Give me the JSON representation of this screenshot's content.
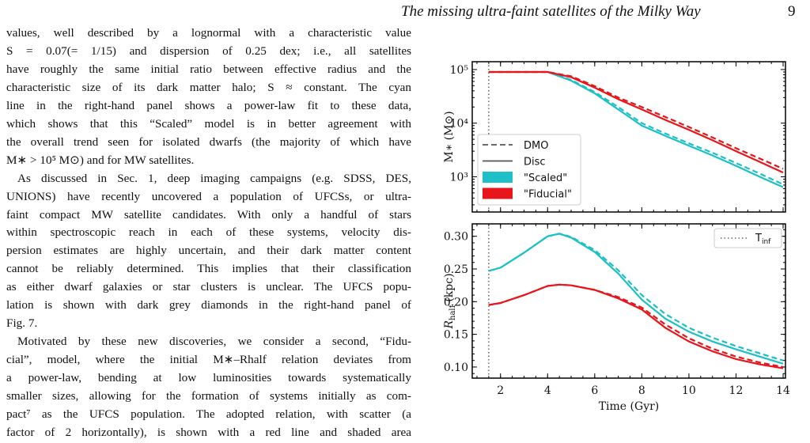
{
  "header": {
    "title": "The missing ultra-faint satellites of the Milky Way",
    "page": "9"
  },
  "text": {
    "lines": [
      "values, well described by a lognormal with a characteristic value",
      "S = 0.07(= 1/15) and dispersion of 0.25 dex; i.e., all satellites",
      "have roughly the same initial ratio between effective radius and the",
      "characteristic size of its dark matter halo; S ≈ constant. The cyan",
      "line in the right-hand panel shows a power-law fit to these data,",
      "which shows that this “Scaled” model is in better agreement with",
      "the overall trend seen for isolated dwarfs (the majority of which have",
      "M∗ > 10⁵ M⊙) and for MW satellites.",
      "As discussed in Sec. 1, deep imaging campaigns (e.g. SDSS, DES,",
      "UNIONS) have recently uncovered a population of UFCSs, or ultra-",
      "faint compact MW satellite candidates. With only a handful of stars",
      "within spectroscopic reach in each of these systems, velocity dis-",
      "persion estimates are highly uncertain, and their dark matter content",
      "cannot be reliably determined. This implies that their classification",
      "as either dwarf galaxies or star clusters is unclear. The UFCS popu-",
      "lation is shown with dark grey diamonds in the right-hand panel of",
      "Fig. 7.",
      "Motivated by these new discoveries, we consider a second, “Fidu-",
      "cial”, model, where the initial M∗–Rhalf relation deviates from",
      "a power-law, bending at low luminosities towards systematically",
      "smaller sizes, allowing for the formation of systems initially as com-",
      "pact⁷ as the UFCS population. The adopted relation, with scatter (a",
      "factor of 2 horizontally), is shown with a red line and shaded area"
    ],
    "paragraph_ends": [
      7,
      16
    ],
    "indented": [
      8,
      17
    ]
  },
  "chart_data": [
    {
      "type": "line",
      "log_y": true,
      "ylabel": "M∗ (M⊙)",
      "x": [
        1.5,
        2,
        3,
        4,
        5,
        6,
        7,
        8,
        9,
        10,
        11,
        12,
        13,
        14
      ],
      "xlim": [
        0.8,
        14.1
      ],
      "xticks": [
        2,
        4,
        6,
        8,
        10,
        12,
        14
      ],
      "ylim": [
        220,
        140000
      ],
      "yticks": [
        {
          "value": 1000,
          "label": "10³"
        },
        {
          "value": 10000,
          "label": "10⁴"
        },
        {
          "value": 100000,
          "label": "10⁵"
        }
      ],
      "vline": {
        "x": 1.5
      },
      "legend": [
        {
          "label": "DMO",
          "dash": true
        },
        {
          "label": "Disc",
          "dash": false
        },
        {
          "label": "\"Scaled\"",
          "color": "#1cc0c6"
        },
        {
          "label": "\"Fiducial\"",
          "color": "#e8161b"
        }
      ],
      "series": [
        {
          "color": "#1cc0c6",
          "dash": false,
          "values": [
            90000,
            90000,
            90000,
            90000,
            62000,
            36000,
            18000,
            9000,
            5800,
            3800,
            2500,
            1600,
            1000,
            640
          ]
        },
        {
          "color": "#1cc0c6",
          "dash": true,
          "values": [
            90000,
            90000,
            90000,
            90000,
            64000,
            38000,
            20000,
            10000,
            6400,
            4200,
            2800,
            1800,
            1150,
            720
          ]
        },
        {
          "color": "#e8161b",
          "dash": false,
          "values": [
            90000,
            90000,
            90000,
            90000,
            72000,
            46000,
            28000,
            18000,
            11500,
            7500,
            4800,
            3000,
            1900,
            1200
          ]
        },
        {
          "color": "#e8161b",
          "dash": true,
          "values": [
            90000,
            90000,
            90000,
            90000,
            75000,
            49000,
            30000,
            20000,
            13000,
            8500,
            5400,
            3400,
            2200,
            1400
          ]
        }
      ]
    },
    {
      "type": "line",
      "log_y": false,
      "ylabel": {
        "symbol": "R",
        "sub": "half",
        "unit": "(kpc)"
      },
      "xlabel": "Time (Gyr)",
      "x": [
        1.5,
        2,
        3,
        4,
        4.5,
        5,
        6,
        7,
        8,
        9,
        10,
        11,
        12,
        13,
        14
      ],
      "xlim": [
        0.8,
        14.1
      ],
      "xticks": [
        2,
        4,
        6,
        8,
        10,
        12,
        14
      ],
      "ylim": [
        0.083,
        0.319
      ],
      "yticks": [
        {
          "value": 0.1,
          "label": "0.10"
        },
        {
          "value": 0.15,
          "label": "0.15"
        },
        {
          "value": 0.2,
          "label": "0.20"
        },
        {
          "value": 0.25,
          "label": "0.25"
        },
        {
          "value": 0.3,
          "label": "0.30"
        }
      ],
      "vline": {
        "x": 1.5,
        "label": "T",
        "label_sub": "inf"
      },
      "series": [
        {
          "color": "#1cc0c6",
          "dash": false,
          "values": [
            0.247,
            0.252,
            0.275,
            0.3,
            0.304,
            0.298,
            0.276,
            0.243,
            0.203,
            0.174,
            0.154,
            0.139,
            0.127,
            0.116,
            0.105
          ]
        },
        {
          "color": "#1cc0c6",
          "dash": true,
          "values": [
            0.247,
            0.252,
            0.275,
            0.3,
            0.304,
            0.299,
            0.279,
            0.248,
            0.21,
            0.181,
            0.16,
            0.145,
            0.132,
            0.121,
            0.11
          ]
        },
        {
          "color": "#e8161b",
          "dash": false,
          "values": [
            0.195,
            0.198,
            0.21,
            0.224,
            0.226,
            0.225,
            0.218,
            0.205,
            0.188,
            0.16,
            0.139,
            0.124,
            0.112,
            0.104,
            0.098
          ]
        },
        {
          "color": "#e8161b",
          "dash": true,
          "values": [
            0.195,
            0.198,
            0.21,
            0.224,
            0.226,
            0.225,
            0.218,
            0.207,
            0.191,
            0.165,
            0.144,
            0.128,
            0.116,
            0.107,
            0.1
          ]
        }
      ]
    }
  ]
}
